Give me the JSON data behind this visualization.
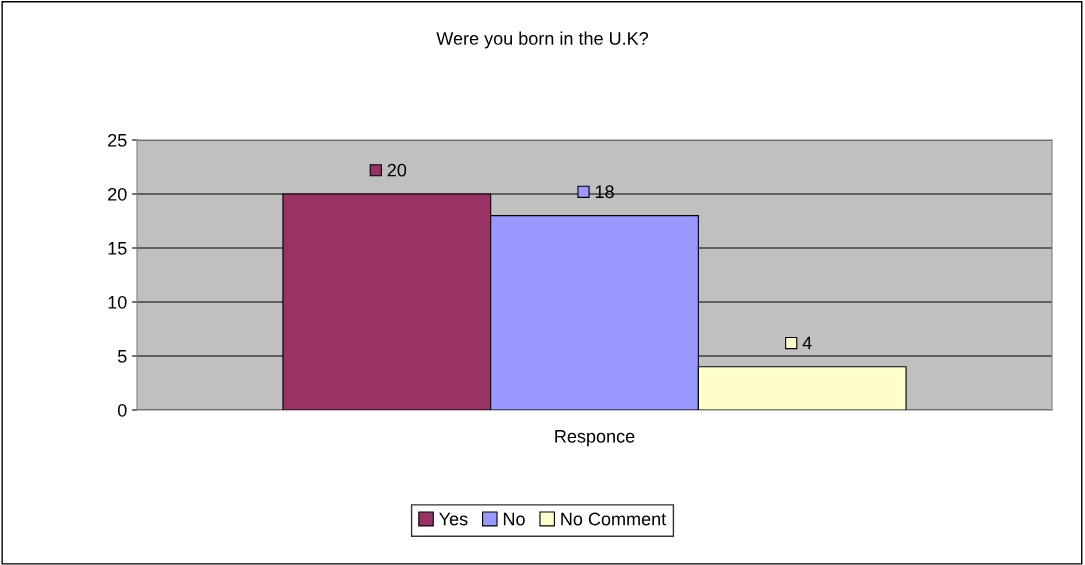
{
  "chart_data": {
    "type": "bar",
    "title": "Were you born in the U.K?",
    "categories": [
      "Responce"
    ],
    "series": [
      {
        "name": "Yes",
        "color": "#993366",
        "values": [
          20
        ]
      },
      {
        "name": "No",
        "color": "#9999ff",
        "values": [
          18
        ]
      },
      {
        "name": "No Comment",
        "color": "#ffffcc",
        "values": [
          4
        ]
      }
    ],
    "ylim": [
      0,
      25
    ],
    "yticks": [
      0,
      5,
      10,
      15,
      20,
      25
    ],
    "grid": "y",
    "legend": "bottom",
    "data_labels": true
  }
}
